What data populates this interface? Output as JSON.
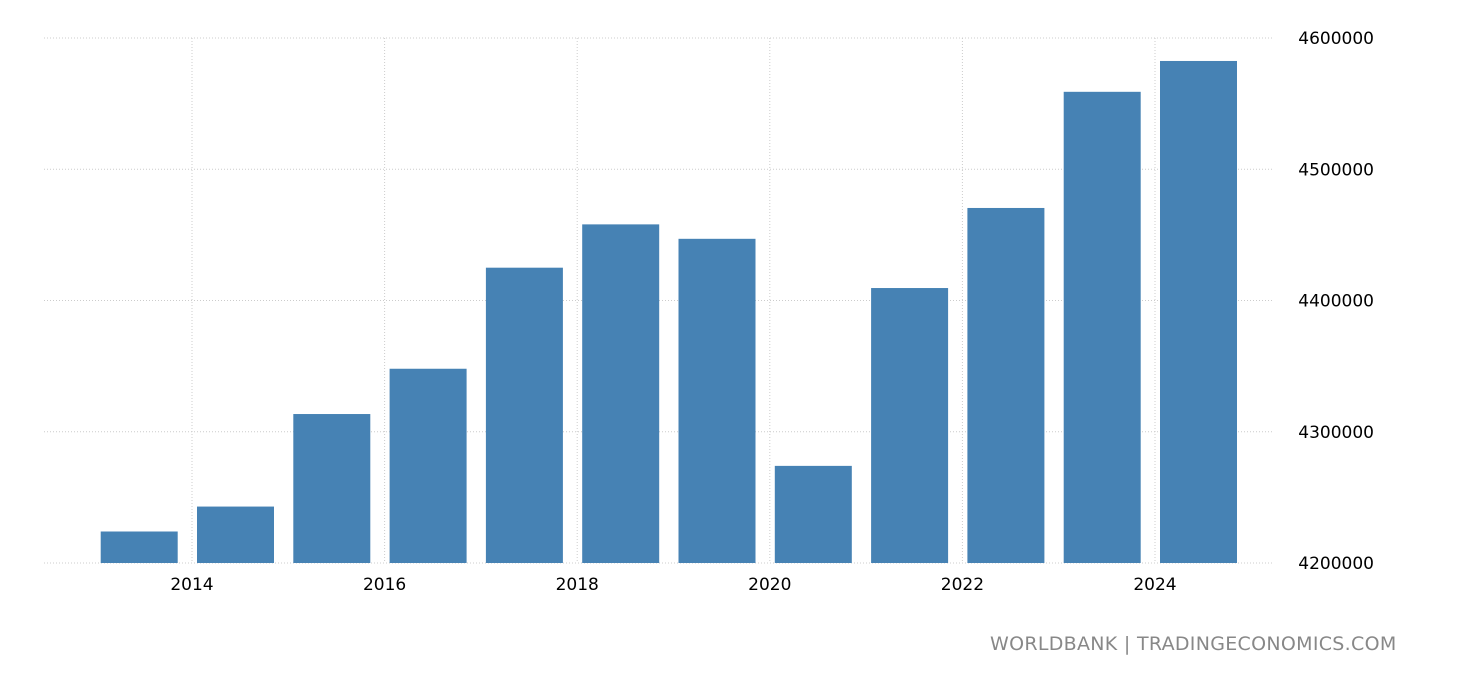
{
  "chart_data": {
    "type": "bar",
    "title": "",
    "xlabel": "",
    "ylabel": "",
    "x": [
      2013,
      2014,
      2015,
      2016,
      2017,
      2018,
      2019,
      2020,
      2021,
      2022,
      2023,
      2024
    ],
    "values": [
      4224000,
      4243000,
      4313500,
      4348000,
      4425000,
      4458000,
      4447000,
      4274000,
      4409500,
      4470500,
      4559000,
      4582500
    ],
    "ylim": [
      4200000,
      4600000
    ],
    "yticks": [
      "4200000",
      "4300000",
      "4400000",
      "4500000",
      "4600000"
    ],
    "xticks": [
      "2014",
      "2016",
      "2018",
      "2020",
      "2022",
      "2024"
    ],
    "grid": true,
    "bar_color": "#4682b4"
  },
  "source": "WORLDBANK | TRADINGECONOMICS.COM"
}
